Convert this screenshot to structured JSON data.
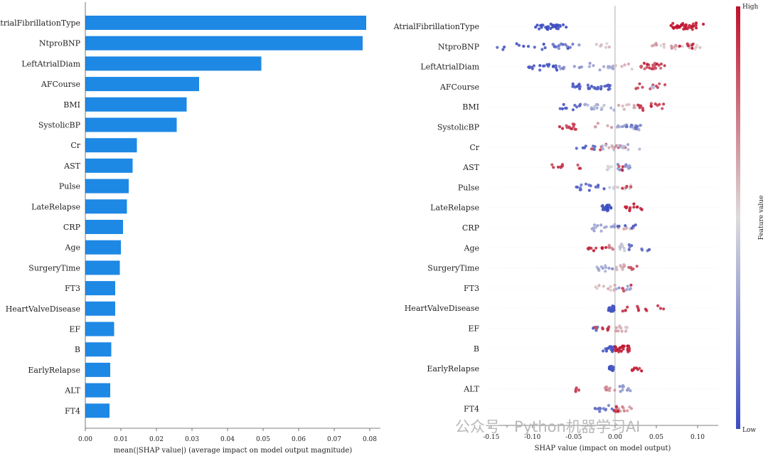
{
  "watermark": "公众号 · Python机器学习AI",
  "chart_data": [
    {
      "type": "bar",
      "orientation": "horizontal",
      "bar_color": "#1e88e5",
      "categories": [
        "AtrialFibrillationType",
        "NtproBNP",
        "LeftAtrialDiam",
        "AFCourse",
        "BMI",
        "SystolicBP",
        "Cr",
        "AST",
        "Pulse",
        "LateRelapse",
        "CRP",
        "Age",
        "SurgeryTime",
        "FT3",
        "HeartValveDisease",
        "EF",
        "B",
        "EarlyRelapse",
        "ALT",
        "FT4"
      ],
      "values": [
        0.079,
        0.078,
        0.0495,
        0.032,
        0.0285,
        0.0257,
        0.0145,
        0.0133,
        0.0122,
        0.0117,
        0.0106,
        0.01,
        0.0097,
        0.0084,
        0.0084,
        0.0081,
        0.0073,
        0.007,
        0.007,
        0.0068
      ],
      "xlabel": "mean(|SHAP value|) (average impact on model output magnitude)",
      "xlim": [
        0,
        0.083
      ],
      "xticks": [
        "0.00",
        "0.01",
        "0.02",
        "0.03",
        "0.04",
        "0.05",
        "0.06",
        "0.07",
        "0.08"
      ]
    },
    {
      "type": "scatter",
      "subtype": "shap-beeswarm",
      "categories": [
        "AtrialFibrillationType",
        "NtproBNP",
        "LeftAtrialDiam",
        "AFCourse",
        "BMI",
        "SystolicBP",
        "Cr",
        "AST",
        "Pulse",
        "LateRelapse",
        "CRP",
        "Age",
        "SurgeryTime",
        "FT3",
        "HeartValveDisease",
        "EF",
        "B",
        "EarlyRelapse",
        "ALT",
        "FT4"
      ],
      "xlabel": "SHAP value (impact on model output)",
      "xlim": [
        -0.155,
        0.125
      ],
      "xticks": [
        "-0.15",
        "-0.10",
        "-0.05",
        "0.00",
        "0.05",
        "0.10"
      ],
      "colorbar": {
        "label": "Feature value",
        "high": "High",
        "low": "Low",
        "high_color": "#c0102a",
        "mid_color": "#dcdcdc",
        "low_color": "#3b4cc0"
      },
      "series": [
        {
          "clusters": [
            [
              -0.101,
              -0.058,
              0.0,
              20
            ],
            [
              -0.09,
              -0.06,
              0.0,
              14
            ],
            [
              0.066,
              0.108,
              1.0,
              22
            ],
            [
              0.078,
              0.1,
              0.95,
              14
            ]
          ]
        },
        {
          "clusters": [
            [
              -0.145,
              -0.055,
              0.05,
              20
            ],
            [
              -0.075,
              -0.04,
              0.2,
              10
            ],
            [
              -0.03,
              -0.005,
              0.55,
              6
            ],
            [
              0.04,
              0.075,
              0.65,
              10
            ],
            [
              0.055,
              0.115,
              0.55,
              14
            ],
            [
              0.075,
              0.098,
              0.95,
              6
            ]
          ]
        },
        {
          "clusters": [
            [
              -0.112,
              -0.07,
              0.03,
              18
            ],
            [
              -0.07,
              -0.04,
              0.25,
              8
            ],
            [
              -0.04,
              0.0,
              0.3,
              12
            ],
            [
              0.0,
              0.03,
              0.6,
              6
            ],
            [
              0.03,
              0.064,
              0.85,
              16
            ],
            [
              0.035,
              0.058,
              0.95,
              6
            ]
          ]
        },
        {
          "clusters": [
            [
              -0.052,
              -0.005,
              0.05,
              34
            ],
            [
              0.025,
              0.068,
              0.85,
              10
            ],
            [
              0.04,
              0.05,
              0.4,
              3
            ]
          ]
        },
        {
          "clusters": [
            [
              -0.07,
              -0.04,
              0.05,
              10
            ],
            [
              -0.04,
              0.0,
              0.35,
              16
            ],
            [
              0.0,
              0.025,
              0.6,
              8
            ],
            [
              0.025,
              0.06,
              0.9,
              14
            ]
          ]
        },
        {
          "clusters": [
            [
              -0.072,
              -0.045,
              0.92,
              12
            ],
            [
              -0.025,
              0.0,
              0.65,
              6
            ],
            [
              0.0,
              0.03,
              0.3,
              18
            ],
            [
              0.012,
              0.032,
              0.15,
              6
            ]
          ]
        },
        {
          "clusters": [
            [
              -0.05,
              -0.02,
              0.1,
              8
            ],
            [
              -0.035,
              0.015,
              0.85,
              10
            ],
            [
              -0.02,
              0.03,
              0.35,
              14
            ],
            [
              -0.01,
              0.0,
              0.65,
              4
            ]
          ]
        },
        {
          "clusters": [
            [
              -0.082,
              -0.04,
              0.9,
              10
            ],
            [
              -0.01,
              0.0,
              0.5,
              6
            ],
            [
              0.0,
              0.02,
              0.25,
              12
            ],
            [
              0.002,
              0.01,
              0.9,
              3
            ]
          ]
        },
        {
          "clusters": [
            [
              -0.048,
              -0.01,
              0.1,
              14
            ],
            [
              -0.01,
              0.02,
              0.5,
              12
            ],
            [
              0.005,
              0.02,
              0.9,
              4
            ]
          ]
        },
        {
          "clusters": [
            [
              -0.016,
              -0.004,
              0.02,
              26
            ],
            [
              0.012,
              0.033,
              0.95,
              12
            ]
          ]
        },
        {
          "clusters": [
            [
              -0.03,
              0.0,
              0.3,
              14
            ],
            [
              0.0,
              0.025,
              0.6,
              10
            ],
            [
              -0.005,
              0.028,
              0.08,
              6
            ]
          ]
        },
        {
          "clusters": [
            [
              -0.035,
              -0.01,
              0.95,
              10
            ],
            [
              -0.01,
              0.0,
              0.7,
              6
            ],
            [
              0.0,
              0.015,
              0.4,
              8
            ],
            [
              0.015,
              0.05,
              0.1,
              8
            ]
          ]
        },
        {
          "clusters": [
            [
              -0.022,
              0.0,
              0.3,
              12
            ],
            [
              0.0,
              0.012,
              0.6,
              8
            ],
            [
              0.012,
              0.028,
              0.85,
              6
            ]
          ]
        },
        {
          "clusters": [
            [
              -0.025,
              0.0,
              0.6,
              10
            ],
            [
              0.0,
              0.02,
              0.3,
              8
            ],
            [
              0.005,
              0.02,
              0.9,
              4
            ]
          ]
        },
        {
          "clusters": [
            [
              -0.008,
              -0.001,
              0.03,
              30
            ],
            [
              0.008,
              0.06,
              0.95,
              12
            ]
          ]
        },
        {
          "clusters": [
            [
              -0.035,
              -0.02,
              0.1,
              5
            ],
            [
              -0.025,
              -0.005,
              0.9,
              8
            ],
            [
              0.0,
              0.015,
              0.6,
              14
            ]
          ]
        },
        {
          "clusters": [
            [
              -0.015,
              0.0,
              0.03,
              14
            ],
            [
              0.0,
              0.018,
              0.95,
              28
            ]
          ]
        },
        {
          "clusters": [
            [
              -0.007,
              -0.002,
              0.03,
              28
            ],
            [
              0.018,
              0.033,
              0.95,
              8
            ]
          ]
        },
        {
          "clusters": [
            [
              -0.05,
              -0.035,
              0.95,
              4
            ],
            [
              -0.015,
              0.0,
              0.7,
              8
            ],
            [
              0.0,
              0.02,
              0.25,
              10
            ]
          ]
        },
        {
          "clusters": [
            [
              -0.025,
              0.0,
              0.15,
              12
            ],
            [
              0.0,
              0.022,
              0.7,
              12
            ],
            [
              -0.003,
              0.005,
              0.95,
              4
            ]
          ]
        }
      ]
    }
  ]
}
